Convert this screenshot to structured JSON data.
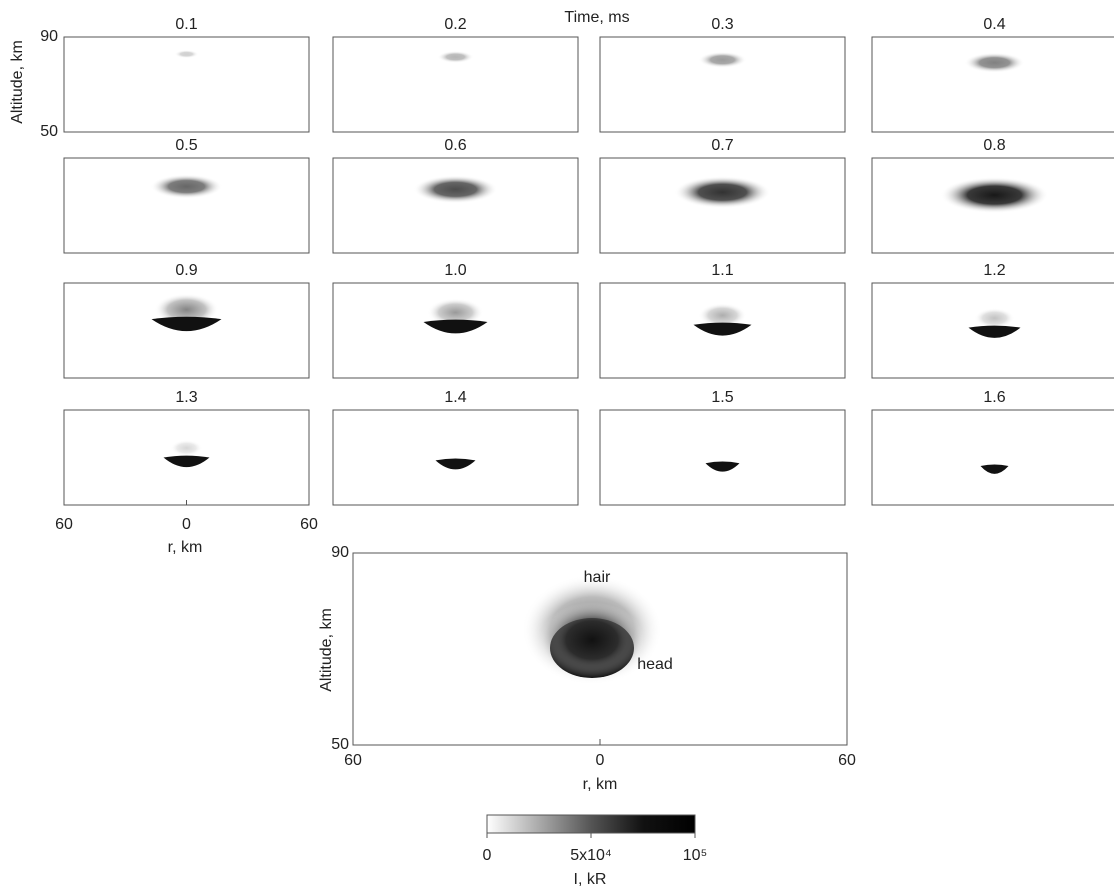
{
  "figure": {
    "time_label": "Time, ms",
    "panels": [
      "0.1",
      "0.2",
      "0.3",
      "0.4",
      "0.5",
      "0.6",
      "0.7",
      "0.8",
      "0.9",
      "1.0",
      "1.1",
      "1.2",
      "1.3",
      "1.4",
      "1.5",
      "1.6"
    ],
    "small": {
      "y_label": "Altitude, km",
      "ylim": [
        50,
        90
      ],
      "yticks": [
        90,
        50
      ],
      "xlim": [
        -60,
        60
      ],
      "xticks": [
        {
          "value": -60,
          "label": "60"
        },
        0,
        60
      ],
      "x_label": "r, km"
    },
    "main": {
      "y_label": "Altitude, km",
      "ylim": [
        50,
        90
      ],
      "yticks": [
        90,
        50
      ],
      "xlim": [
        -60,
        60
      ],
      "xticks": [
        {
          "value": -60,
          "label": "60"
        },
        0,
        60
      ],
      "x_label": "r, km",
      "annotations": [
        "hair",
        "head"
      ]
    },
    "colorbar": {
      "lim": [
        0,
        100000
      ],
      "ticks": [
        {
          "value": 0,
          "label": "0"
        },
        {
          "value": 50000,
          "label": "5x10⁴"
        },
        {
          "value": 100000,
          "label": "10⁵"
        }
      ],
      "label": "I, kR"
    }
  }
}
